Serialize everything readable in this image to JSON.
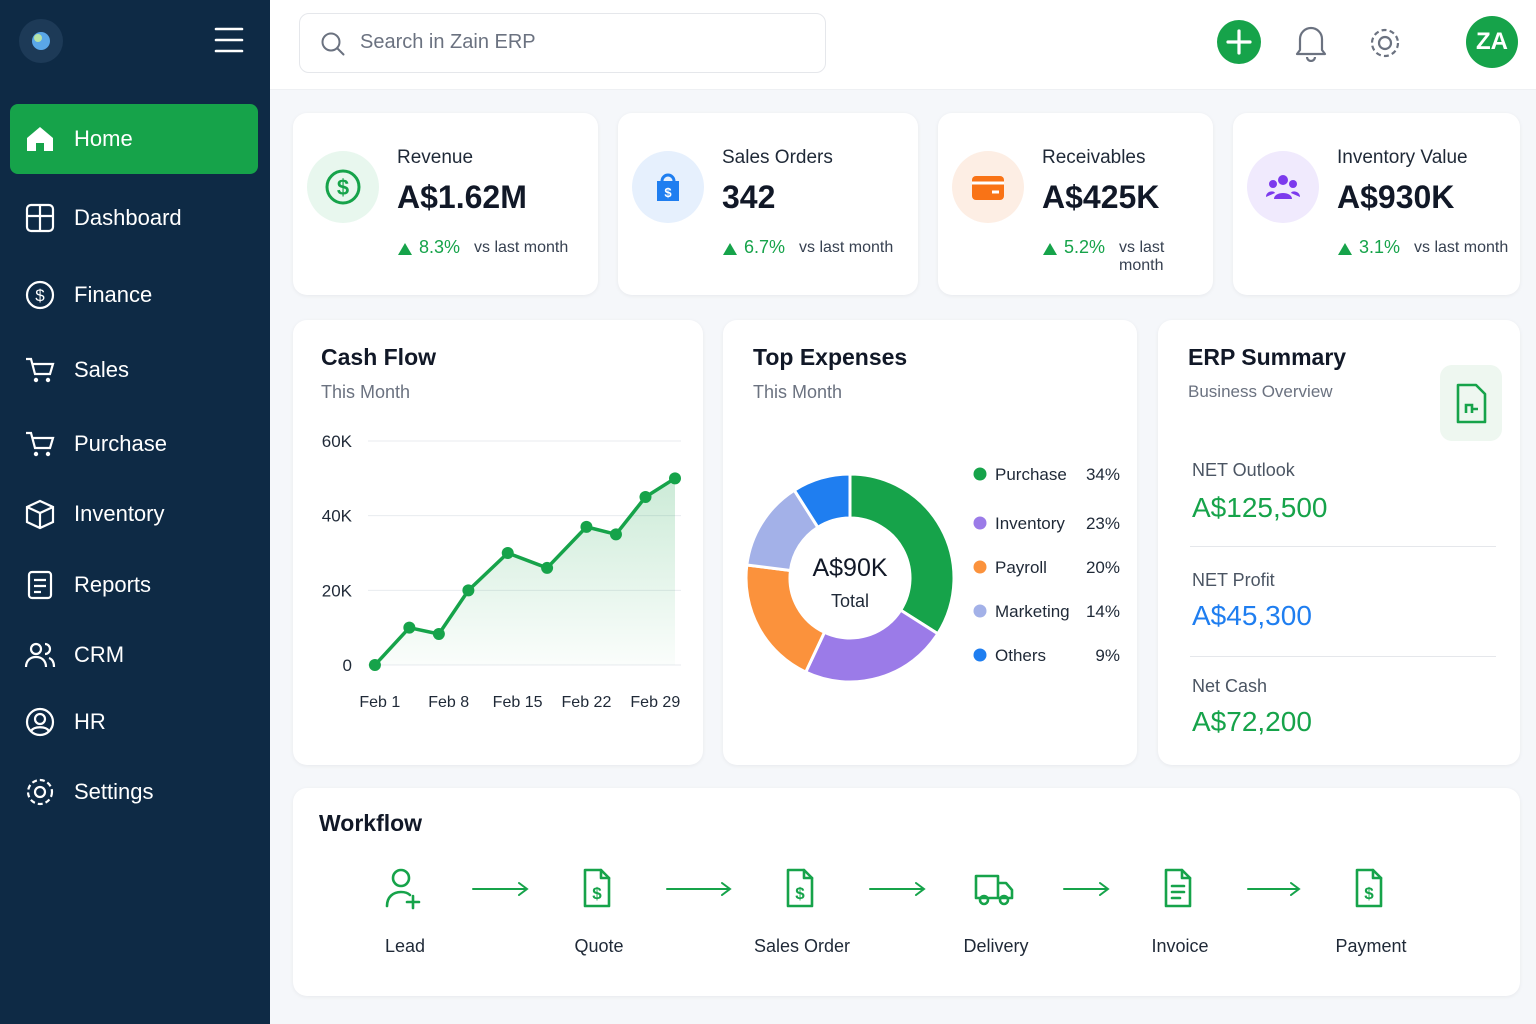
{
  "sidebar": {
    "menu": [
      "Home",
      "Dashboard",
      "Finance",
      "Sales",
      "Purchase",
      "Inventory",
      "Reports",
      "CRM",
      "HR",
      "Settings"
    ]
  },
  "search": {
    "placeholder": "Search in Zain ERP"
  },
  "user": {
    "initials": "ZA"
  },
  "kpis": [
    {
      "label": "Revenue",
      "value": "A$1.62M",
      "change": "8.3%",
      "compare": "vs last month"
    },
    {
      "label": "Sales Orders",
      "value": "342",
      "change": "6.7%",
      "compare": "vs last month"
    },
    {
      "label": "Receivables",
      "value": "A$425K",
      "change": "5.2%",
      "compare": "vs last month"
    },
    {
      "label": "Inventory Value",
      "value": "A$930K",
      "change": "3.1%",
      "compare": "vs last month"
    }
  ],
  "chart_data": [
    {
      "type": "line",
      "title": "Cash Flow",
      "subtitle": "This Month",
      "x": [
        0.5,
        4,
        7,
        10,
        14,
        18,
        22,
        25,
        28,
        31
      ],
      "values": [
        0,
        10000,
        8300,
        20000,
        30000,
        26000,
        37000,
        35000,
        45000,
        50000
      ],
      "color": "#16a34a",
      "xlim": [
        0,
        31
      ],
      "xticks": [
        {
          "value": 1,
          "label": "Feb 1"
        },
        {
          "value": 8,
          "label": "Feb 8"
        },
        {
          "value": 15,
          "label": "Feb 15"
        },
        {
          "value": 22,
          "label": "Feb 22"
        },
        {
          "value": 29,
          "label": "Feb 29"
        }
      ],
      "ylim": [
        0,
        60000
      ],
      "yticks": [
        0,
        {
          "value": 20000,
          "label": "20K"
        },
        {
          "value": 40000,
          "label": "40K"
        },
        {
          "value": 60000,
          "label": "60K"
        }
      ],
      "grid": true
    },
    {
      "type": "pie",
      "title": "Top Expenses",
      "subtitle": "This Month",
      "donut": true,
      "center_value": "A$90K",
      "center_label": "Total",
      "categories": [
        "Purchase",
        "Inventory",
        "Payroll",
        "Marketing",
        "Others"
      ],
      "values": [
        34,
        23,
        20,
        14,
        9
      ],
      "value_labels": [
        "34%",
        "23%",
        "20%",
        "14%",
        "9%"
      ],
      "colors": [
        "#16a34a",
        "#9b7be8",
        "#fb923c",
        "#a3b1e8",
        "#1f7ef0"
      ],
      "legend": "right"
    }
  ],
  "erp_summary": {
    "title": "ERP Summary",
    "subtitle": "Business Overview",
    "items": [
      {
        "label": "NET Outlook",
        "value": "A$125,500",
        "color": "#16a34a"
      },
      {
        "label": "NET Profit",
        "value": "A$45,300",
        "color": "#1f7ef0"
      },
      {
        "label": "Net Cash",
        "value": "A$72,200",
        "color": "#16a34a"
      }
    ]
  },
  "workflow": {
    "title": "Workflow",
    "steps": [
      "Lead",
      "Quote",
      "Sales Order",
      "Delivery",
      "Invoice",
      "Payment"
    ]
  }
}
